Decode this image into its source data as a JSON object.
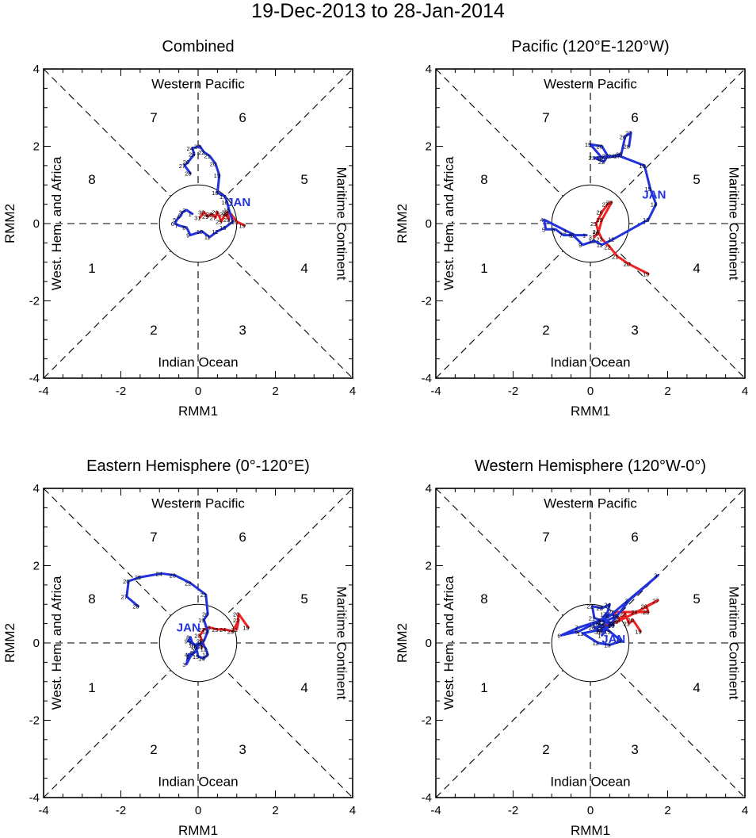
{
  "title": "19-Dec-2013 to 28-Jan-2014",
  "colors": {
    "dec": "#ee2222",
    "jan": "#2233dd",
    "axis": "#000000"
  },
  "month_label": "JAN",
  "phase_labels": {
    "top": "Western Pacific",
    "bottom": "Indian Ocean",
    "left": "West. Hem. and Africa",
    "right": "Maritime Continent"
  },
  "phase_numbers": [
    "1",
    "2",
    "3",
    "4",
    "5",
    "6",
    "7",
    "8"
  ],
  "xlabel": "RMM1",
  "ylabel": "RMM2",
  "tick_labels": [
    "-4",
    "-2",
    "0",
    "2",
    "4"
  ],
  "chart_data": [
    {
      "type": "line",
      "title": "Combined",
      "xlim": [
        -4,
        4
      ],
      "ylim": [
        -4,
        4
      ],
      "series": [
        {
          "name": "Dec 2013",
          "color": "dec",
          "points": [
            [
              1.2,
              -0.05,
              "19"
            ],
            [
              1.0,
              0.05,
              "20"
            ],
            [
              0.85,
              0.25,
              "21"
            ],
            [
              0.75,
              0.3,
              "22"
            ],
            [
              0.8,
              0.1,
              "23"
            ],
            [
              0.7,
              0.25,
              "24"
            ],
            [
              0.6,
              0.05,
              "25"
            ],
            [
              0.5,
              0.3,
              "26"
            ],
            [
              0.45,
              0.15,
              "27"
            ],
            [
              0.35,
              0.25,
              "28"
            ],
            [
              0.25,
              0.18,
              "29"
            ],
            [
              0.15,
              0.3,
              "30"
            ],
            [
              0.05,
              0.15,
              "31"
            ]
          ]
        },
        {
          "name": "Jan 2014",
          "color": "jan",
          "points": [
            [
              -0.15,
              0.25,
              "1"
            ],
            [
              -0.3,
              0.35,
              "2"
            ],
            [
              -0.4,
              0.3,
              "3"
            ],
            [
              -0.45,
              0.2,
              "4"
            ],
            [
              -0.55,
              0.1,
              "5"
            ],
            [
              -0.6,
              0.0,
              "6"
            ],
            [
              -0.5,
              -0.05,
              "7"
            ],
            [
              -0.3,
              -0.1,
              "8"
            ],
            [
              -0.2,
              -0.3,
              "9"
            ],
            [
              0.1,
              -0.2,
              "10"
            ],
            [
              0.3,
              -0.35,
              "11"
            ],
            [
              0.5,
              -0.2,
              "12"
            ],
            [
              0.7,
              -0.1,
              "13"
            ],
            [
              0.9,
              0.05,
              "14"
            ],
            [
              0.8,
              0.35,
              "15"
            ],
            [
              0.75,
              0.55,
              "16"
            ],
            [
              0.7,
              0.7,
              "17"
            ],
            [
              0.5,
              0.8,
              "18"
            ],
            [
              0.55,
              1.25,
              "19"
            ],
            [
              0.45,
              1.55,
              "20"
            ],
            [
              0.3,
              1.75,
              "21"
            ],
            [
              0.15,
              1.85,
              "22"
            ],
            [
              0.05,
              2.0,
              "23"
            ],
            [
              -0.15,
              1.95,
              "24"
            ],
            [
              -0.1,
              1.8,
              "25"
            ],
            [
              -0.25,
              1.6,
              "26"
            ],
            [
              -0.35,
              1.5,
              "27"
            ],
            [
              -0.2,
              1.3,
              "28"
            ]
          ]
        }
      ],
      "label": {
        "text": "JAN",
        "x": 1.05,
        "y": 0.45
      }
    },
    {
      "type": "line",
      "title": "Pacific (120°E-120°W)",
      "xlim": [
        -4,
        4
      ],
      "ylim": [
        -4,
        4
      ],
      "series": [
        {
          "name": "Dec 2013",
          "color": "dec",
          "points": [
            [
              1.5,
              -1.3,
              "19"
            ],
            [
              1.0,
              -1.05,
              "20"
            ],
            [
              0.7,
              -0.85,
              "21"
            ],
            [
              0.5,
              -0.6,
              "22"
            ],
            [
              0.3,
              -0.4,
              "23"
            ],
            [
              0.2,
              -0.2,
              "24"
            ],
            [
              0.15,
              0.0,
              "25"
            ],
            [
              0.3,
              0.3,
              "26"
            ],
            [
              0.45,
              0.5,
              "27"
            ],
            [
              0.55,
              0.55,
              "28"
            ],
            [
              0.3,
              0.1,
              "29"
            ],
            [
              0.2,
              -0.25,
              "30"
            ],
            [
              0.1,
              -0.35,
              "31"
            ]
          ]
        },
        {
          "name": "Jan 2014",
          "color": "jan",
          "points": [
            [
              -0.1,
              -0.3,
              "1"
            ],
            [
              -0.4,
              -0.3,
              "2"
            ],
            [
              -0.6,
              -0.2,
              "3"
            ],
            [
              -1.2,
              0.1,
              "4"
            ],
            [
              -1.15,
              -0.15,
              "5"
            ],
            [
              -0.9,
              -0.15,
              "6"
            ],
            [
              -0.7,
              -0.3,
              "7"
            ],
            [
              -0.45,
              -0.3,
              "8"
            ],
            [
              -0.2,
              -0.55,
              "9"
            ],
            [
              0.1,
              -0.45,
              "10"
            ],
            [
              0.3,
              -0.55,
              "11"
            ],
            [
              0.6,
              -0.4,
              "12"
            ],
            [
              1.5,
              0.1,
              "13"
            ],
            [
              1.7,
              0.5,
              "14"
            ],
            [
              1.55,
              0.9,
              "15"
            ],
            [
              1.4,
              1.5,
              "16"
            ],
            [
              0.75,
              1.75,
              "17"
            ],
            [
              0.3,
              1.7,
              "18"
            ],
            [
              0.0,
              2.05,
              "19"
            ],
            [
              0.3,
              2.0,
              "20"
            ],
            [
              0.45,
              1.75,
              "21"
            ],
            [
              0.35,
              1.6,
              "22"
            ],
            [
              0.1,
              1.7,
              "23"
            ],
            [
              0.6,
              1.75,
              "24"
            ],
            [
              0.8,
              1.8,
              "25"
            ],
            [
              0.9,
              2.25,
              "26"
            ],
            [
              1.05,
              2.35,
              "27"
            ],
            [
              1.0,
              2.0,
              "28"
            ]
          ]
        }
      ],
      "label": {
        "text": "JAN",
        "x": 1.65,
        "y": 0.65
      }
    },
    {
      "type": "line",
      "title": "Eastern Hemisphere (0°-120°E)",
      "xlim": [
        -4,
        4
      ],
      "ylim": [
        -4,
        4
      ],
      "series": [
        {
          "name": "Dec 2013",
          "color": "dec",
          "points": [
            [
              1.3,
              0.4,
              "19"
            ],
            [
              1.05,
              0.75,
              "20"
            ],
            [
              1.0,
              0.35,
              "21"
            ],
            [
              1.05,
              0.6,
              "22"
            ],
            [
              0.9,
              0.3,
              "23"
            ],
            [
              0.7,
              0.35,
              "24"
            ],
            [
              0.5,
              0.35,
              "25"
            ],
            [
              0.3,
              0.4,
              "26"
            ],
            [
              0.15,
              0.35,
              "27"
            ],
            [
              0.05,
              0.2,
              "28"
            ],
            [
              0.1,
              0.05,
              "29"
            ],
            [
              0.15,
              -0.05,
              "30"
            ],
            [
              0.1,
              -0.1,
              "31"
            ]
          ]
        },
        {
          "name": "Jan 2014",
          "color": "jan",
          "points": [
            [
              -0.05,
              -0.2,
              "1"
            ],
            [
              -0.2,
              -0.35,
              "2"
            ],
            [
              -0.3,
              -0.55,
              "3"
            ],
            [
              -0.25,
              -0.3,
              "4"
            ],
            [
              -0.1,
              -0.25,
              "5"
            ],
            [
              0.0,
              -0.1,
              "6"
            ],
            [
              -0.15,
              0.0,
              "7"
            ],
            [
              -0.2,
              0.15,
              "8"
            ],
            [
              -0.25,
              0.05,
              "9"
            ],
            [
              -0.1,
              -0.05,
              "10"
            ],
            [
              0.1,
              0.0,
              "11"
            ],
            [
              0.2,
              -0.15,
              "12"
            ],
            [
              0.25,
              -0.3,
              "13"
            ],
            [
              0.15,
              -0.4,
              "14"
            ],
            [
              0.0,
              -0.35,
              "15"
            ],
            [
              -0.05,
              -0.1,
              "16"
            ],
            [
              0.15,
              0.05,
              "17"
            ],
            [
              0.25,
              0.3,
              "18"
            ],
            [
              0.15,
              0.6,
              "19"
            ],
            [
              0.25,
              0.75,
              "20"
            ],
            [
              0.2,
              1.25,
              "21"
            ],
            [
              -0.2,
              1.55,
              "22"
            ],
            [
              -0.6,
              1.75,
              "23"
            ],
            [
              -0.95,
              1.8,
              "24"
            ],
            [
              -1.5,
              1.7,
              "25"
            ],
            [
              -1.8,
              1.6,
              "26"
            ],
            [
              -1.85,
              1.2,
              "27"
            ],
            [
              -1.55,
              0.95,
              "28"
            ]
          ]
        }
      ],
      "label": {
        "text": "JAN",
        "x": -0.25,
        "y": 0.3
      }
    },
    {
      "type": "line",
      "title": "Western Hemisphere (120°W-0°)",
      "xlim": [
        -4,
        4
      ],
      "ylim": [
        -4,
        4
      ],
      "series": [
        {
          "name": "Dec 2013",
          "color": "dec",
          "points": [
            [
              1.3,
              0.3,
              "19"
            ],
            [
              1.1,
              0.6,
              "20"
            ],
            [
              1.0,
              0.5,
              "21"
            ],
            [
              0.9,
              0.75,
              "22"
            ],
            [
              0.75,
              0.6,
              "23"
            ],
            [
              0.6,
              0.8,
              "24"
            ],
            [
              1.5,
              0.8,
              "25"
            ],
            [
              1.45,
              0.95,
              "26"
            ],
            [
              1.75,
              1.1,
              "27"
            ],
            [
              1.2,
              0.8,
              "28"
            ],
            [
              0.7,
              0.55,
              "29"
            ],
            [
              0.4,
              0.45,
              "30"
            ],
            [
              0.25,
              0.3,
              "31"
            ]
          ]
        },
        {
          "name": "Jan 2014",
          "color": "jan",
          "points": [
            [
              0.3,
              0.2,
              "1"
            ],
            [
              1.0,
              1.1,
              "2"
            ],
            [
              1.75,
              1.75,
              "3"
            ],
            [
              0.5,
              0.7,
              "4"
            ],
            [
              -0.3,
              0.3,
              "5"
            ],
            [
              -0.75,
              0.2,
              "6"
            ],
            [
              -0.3,
              0.4,
              "7"
            ],
            [
              0.3,
              0.6,
              "8"
            ],
            [
              0.6,
              0.5,
              "9"
            ],
            [
              0.3,
              0.35,
              "10"
            ],
            [
              -0.2,
              0.25,
              "11"
            ],
            [
              0.2,
              0.0,
              "12"
            ],
            [
              0.5,
              -0.05,
              "13"
            ],
            [
              0.8,
              0.05,
              "14"
            ],
            [
              0.5,
              0.3,
              "15"
            ],
            [
              0.2,
              0.5,
              "16"
            ],
            [
              0.4,
              0.75,
              "17"
            ],
            [
              0.7,
              0.7,
              "18"
            ],
            [
              0.35,
              0.55,
              "19"
            ],
            [
              0.6,
              0.45,
              "20"
            ],
            [
              0.1,
              0.65,
              "21"
            ],
            [
              0.05,
              0.95,
              "22"
            ],
            [
              0.3,
              0.9,
              "23"
            ],
            [
              0.5,
              1.0,
              "24"
            ],
            [
              0.35,
              0.45,
              "25"
            ],
            [
              0.1,
              0.4,
              "26"
            ],
            [
              0.3,
              0.3,
              "27"
            ],
            [
              0.6,
              0.5,
              "28"
            ]
          ]
        }
      ],
      "label": {
        "text": "JAN",
        "x": 0.6,
        "y": 0.0
      }
    }
  ]
}
